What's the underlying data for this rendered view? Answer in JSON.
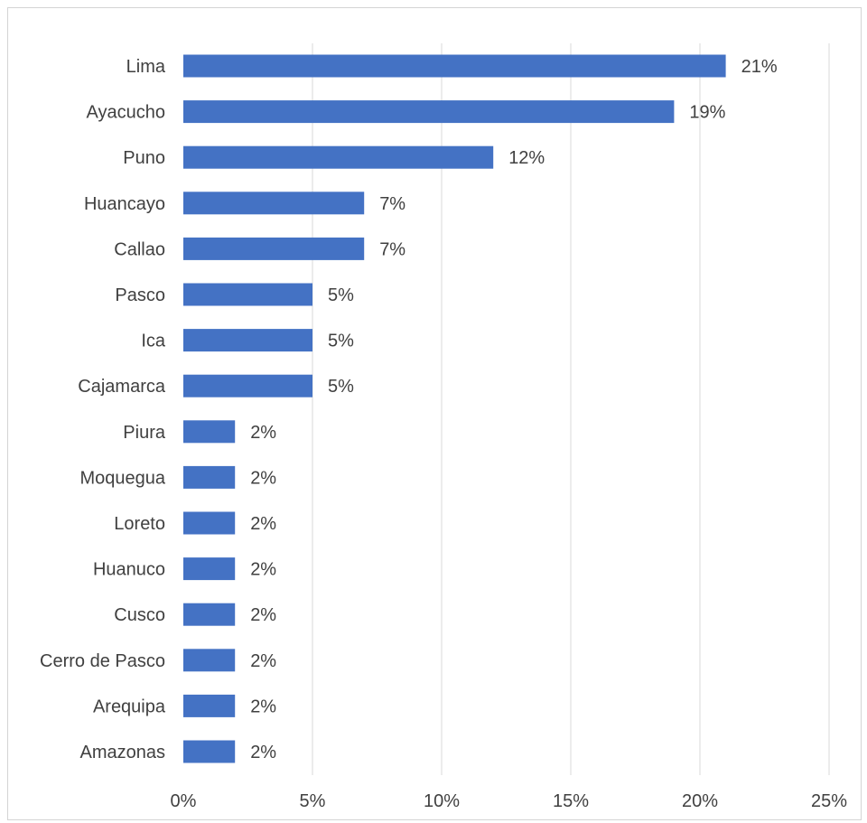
{
  "chart_data": {
    "type": "bar",
    "orientation": "horizontal",
    "title": "",
    "xlabel": "",
    "ylabel": "",
    "categories": [
      "Lima",
      "Ayacucho",
      "Puno",
      "Huancayo",
      "Callao",
      "Pasco",
      "Ica",
      "Cajamarca",
      "Piura",
      "Moquegua",
      "Loreto",
      "Huanuco",
      "Cusco",
      "Cerro de Pasco",
      "Arequipa",
      "Amazonas"
    ],
    "values": [
      21,
      19,
      12,
      7,
      7,
      5,
      5,
      5,
      2,
      2,
      2,
      2,
      2,
      2,
      2,
      2
    ],
    "value_labels": [
      "21%",
      "19%",
      "12%",
      "7%",
      "7%",
      "5%",
      "5%",
      "5%",
      "2%",
      "2%",
      "2%",
      "2%",
      "2%",
      "2%",
      "2%",
      "2%"
    ],
    "xlim": [
      0,
      25
    ],
    "xticks": [
      0,
      5,
      10,
      15,
      20,
      25
    ],
    "xtick_labels": [
      "0%",
      "5%",
      "10%",
      "15%",
      "20%",
      "25%"
    ],
    "grid": "vertical",
    "legend": "none",
    "bar_color": "#4472C4",
    "grid_color": "#d9d9d9"
  }
}
